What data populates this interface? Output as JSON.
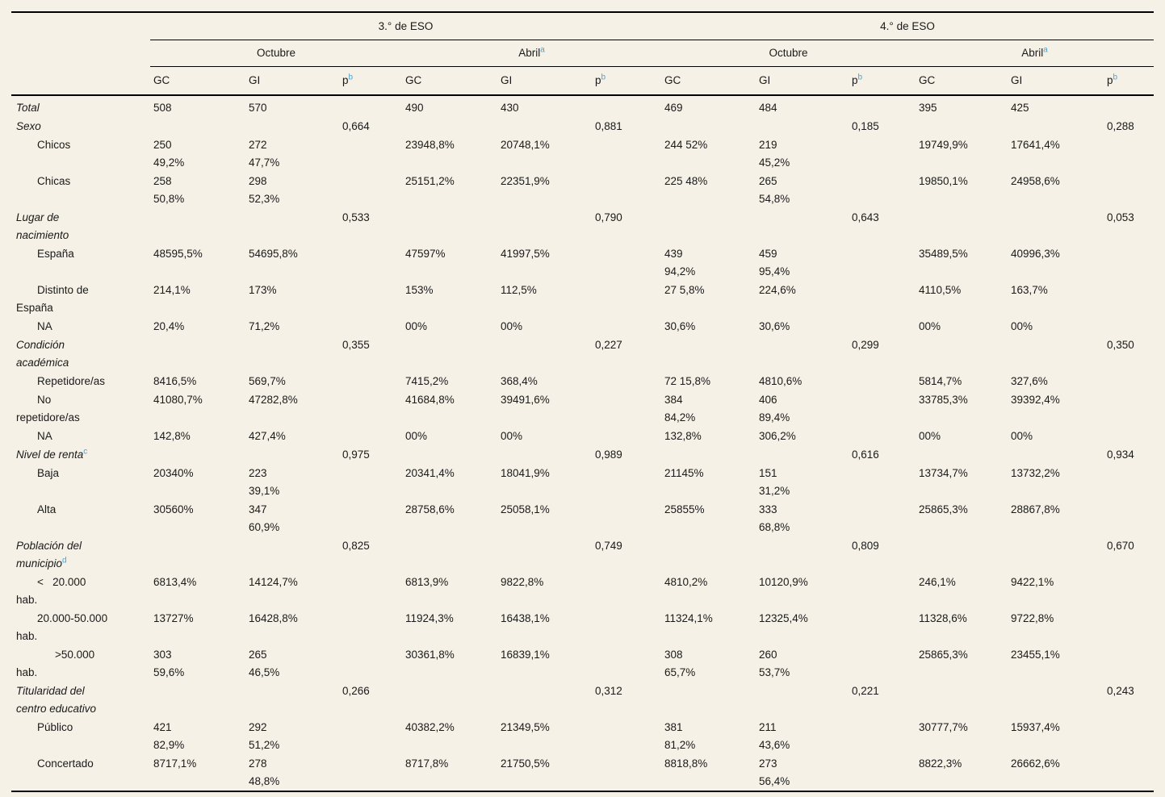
{
  "colors": {
    "page_background": "#f5f1e7",
    "text": "#1a1a1a",
    "rule_lines": "#000000",
    "footnote_link_blue": "#45a3dd"
  },
  "table": {
    "groups": [
      {
        "label": "3.° de ESO"
      },
      {
        "label": "4.° de ESO"
      }
    ],
    "periods": [
      {
        "label": "Octubre",
        "sup": ""
      },
      {
        "label": "Abril",
        "sup": "a"
      },
      {
        "label": "Octubre",
        "sup": ""
      },
      {
        "label": "Abril",
        "sup": "a"
      }
    ],
    "col_headers": {
      "gc": "GC",
      "gi": "GI",
      "p": "p",
      "p_sup": "b"
    },
    "rows": [
      {
        "label": "Total",
        "sup": "",
        "type": "section",
        "cells": [
          "508",
          "570",
          "",
          "490",
          "430",
          "",
          "469",
          "484",
          "",
          "395",
          "425",
          ""
        ]
      },
      {
        "label": "Sexo",
        "sup": "",
        "type": "section",
        "cells": [
          "",
          "",
          "0,664",
          "",
          "",
          "0,881",
          "",
          "",
          "0,185",
          "",
          "",
          "0,288"
        ]
      },
      {
        "label": "Chicos",
        "sup": "",
        "type": "sub",
        "cells": [
          "250\n49,2%",
          "272\n47,7%",
          "",
          "23948,8%",
          "20748,1%",
          "",
          "244 52%",
          "219\n45,2%",
          "",
          "19749,9%",
          "17641,4%",
          ""
        ]
      },
      {
        "label": "Chicas",
        "sup": "",
        "type": "sub",
        "cells": [
          "258\n50,8%",
          "298\n52,3%",
          "",
          "25151,2%",
          "22351,9%",
          "",
          "225 48%",
          "265\n54,8%",
          "",
          "19850,1%",
          "24958,6%",
          ""
        ]
      },
      {
        "label": "Lugar de\nnacimiento",
        "sup": "",
        "type": "section",
        "cells": [
          "",
          "",
          "0,533",
          "",
          "",
          "0,790",
          "",
          "",
          "0,643",
          "",
          "",
          "0,053"
        ]
      },
      {
        "label": "España",
        "sup": "",
        "type": "sub",
        "cells": [
          "48595,5%",
          "54695,8%",
          "",
          "47597%",
          "41997,5%",
          "",
          "439\n94,2%",
          "459\n95,4%",
          "",
          "35489,5%",
          "40996,3%",
          ""
        ]
      },
      {
        "label": "Distinto de\nEspaña",
        "sup": "",
        "type": "sub",
        "cells": [
          "214,1%",
          "173%",
          "",
          "153%",
          "112,5%",
          "",
          "27 5,8%",
          "224,6%",
          "",
          "4110,5%",
          "163,7%",
          ""
        ]
      },
      {
        "label": "NA",
        "sup": "",
        "type": "sub",
        "cells": [
          "20,4%",
          "71,2%",
          "",
          "00%",
          "00%",
          "",
          "30,6%",
          "30,6%",
          "",
          "00%",
          "00%",
          ""
        ]
      },
      {
        "label": "Condición\nacadémica",
        "sup": "",
        "type": "section",
        "cells": [
          "",
          "",
          "0,355",
          "",
          "",
          "0,227",
          "",
          "",
          "0,299",
          "",
          "",
          "0,350"
        ]
      },
      {
        "label": "Repetidore/as",
        "sup": "",
        "type": "sub",
        "cells": [
          "8416,5%",
          "569,7%",
          "",
          "7415,2%",
          "368,4%",
          "",
          "72 15,8%",
          "4810,6%",
          "",
          "5814,7%",
          "327,6%",
          ""
        ]
      },
      {
        "label": "No\nrepetidore/as",
        "sup": "",
        "type": "sub",
        "cells": [
          "41080,7%",
          "47282,8%",
          "",
          "41684,8%",
          "39491,6%",
          "",
          "384\n84,2%",
          "406\n89,4%",
          "",
          "33785,3%",
          "39392,4%",
          ""
        ]
      },
      {
        "label": "NA",
        "sup": "",
        "type": "sub",
        "cells": [
          "142,8%",
          "427,4%",
          "",
          "00%",
          "00%",
          "",
          "132,8%",
          "306,2%",
          "",
          "00%",
          "00%",
          ""
        ]
      },
      {
        "label": "Nivel de renta",
        "sup": "c",
        "type": "section",
        "cells": [
          "",
          "",
          "0,975",
          "",
          "",
          "0,989",
          "",
          "",
          "0,616",
          "",
          "",
          "0,934"
        ]
      },
      {
        "label": "Baja",
        "sup": "",
        "type": "sub",
        "cells": [
          "20340%",
          "223\n39,1%",
          "",
          "20341,4%",
          "18041,9%",
          "",
          "21145%",
          "151\n31,2%",
          "",
          "13734,7%",
          "13732,2%",
          ""
        ]
      },
      {
        "label": "Alta",
        "sup": "",
        "type": "sub",
        "cells": [
          "30560%",
          "347\n60,9%",
          "",
          "28758,6%",
          "25058,1%",
          "",
          "25855%",
          "333\n68,8%",
          "",
          "25865,3%",
          "28867,8%",
          ""
        ]
      },
      {
        "label": "Población del\nmunicipio",
        "sup": "d",
        "type": "section",
        "cells": [
          "",
          "",
          "0,825",
          "",
          "",
          "0,749",
          "",
          "",
          "0,809",
          "",
          "",
          "0,670"
        ]
      },
      {
        "label": "<   20.000\nhab.",
        "sup": "",
        "type": "sub",
        "cells": [
          "6813,4%",
          "14124,7%",
          "",
          "6813,9%",
          "9822,8%",
          "",
          "4810,2%",
          "10120,9%",
          "",
          "246,1%",
          "9422,1%",
          ""
        ]
      },
      {
        "label": "20.000-50.000\nhab.",
        "sup": "",
        "type": "sub",
        "cells": [
          "13727%",
          "16428,8%",
          "",
          "11924,3%",
          "16438,1%",
          "",
          "11324,1%",
          "12325,4%",
          "",
          "11328,6%",
          "9722,8%",
          ""
        ]
      },
      {
        "label": ">50.000\nhab.",
        "sup": "",
        "type": "sub-deep",
        "cells": [
          "303\n59,6%",
          "265\n46,5%",
          "",
          "30361,8%",
          "16839,1%",
          "",
          "308\n65,7%",
          "260\n53,7%",
          "",
          "25865,3%",
          "23455,1%",
          ""
        ]
      },
      {
        "label": "Titularidad del\ncentro educativo",
        "sup": "",
        "type": "section",
        "cells": [
          "",
          "",
          "0,266",
          "",
          "",
          "0,312",
          "",
          "",
          "0,221",
          "",
          "",
          "0,243"
        ]
      },
      {
        "label": "Público",
        "sup": "",
        "type": "sub",
        "cells": [
          "421\n82,9%",
          "292\n51,2%",
          "",
          "40382,2%",
          "21349,5%",
          "",
          "381\n81,2%",
          "211\n43,6%",
          "",
          "30777,7%",
          "15937,4%",
          ""
        ]
      },
      {
        "label": "Concertado",
        "sup": "",
        "type": "sub",
        "cells": [
          "8717,1%",
          "278\n48,8%",
          "",
          "8717,8%",
          "21750,5%",
          "",
          "8818,8%",
          "273\n56,4%",
          "",
          "8822,3%",
          "26662,6%",
          ""
        ]
      }
    ]
  }
}
